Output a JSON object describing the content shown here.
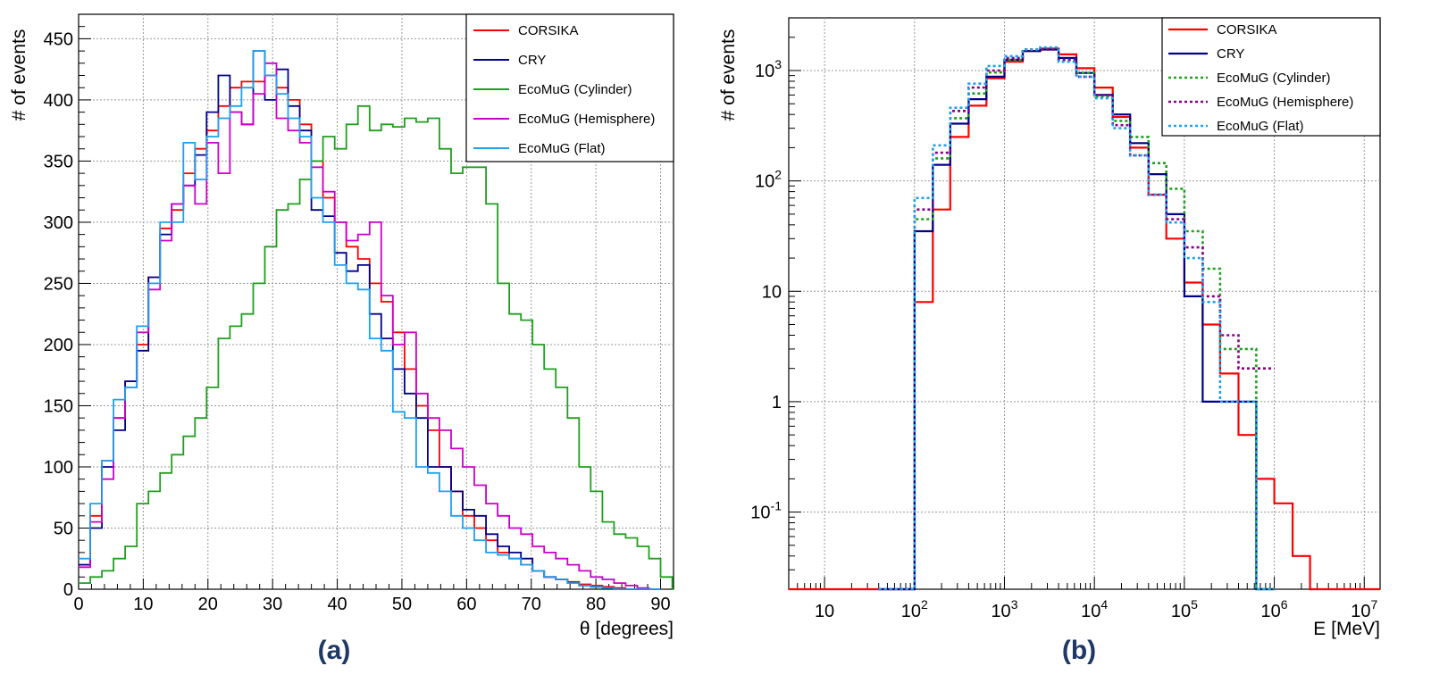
{
  "figure": {
    "panel_labels": [
      "(a)",
      "(b)"
    ]
  },
  "chart_data": [
    {
      "type": "histogram-step",
      "panel": "(a)",
      "xlabel": "θ [degrees]",
      "ylabel": "# of events",
      "xlim": [
        0,
        92
      ],
      "ylim": [
        0,
        470
      ],
      "grid": true,
      "legend_position": "top-right",
      "xticks": [
        0,
        10,
        20,
        30,
        40,
        50,
        60,
        70,
        80,
        90
      ],
      "yticks": [
        0,
        50,
        100,
        150,
        200,
        250,
        300,
        350,
        400,
        450
      ],
      "bin_edges_start": 0,
      "bin_width": 1.8,
      "series": [
        {
          "name": "CORSIKA",
          "color": "#ff0000",
          "dash": false,
          "values": [
            20,
            60,
            105,
            140,
            170,
            200,
            255,
            295,
            310,
            340,
            360,
            375,
            395,
            410,
            415,
            415,
            420,
            410,
            400,
            380,
            350,
            320,
            300,
            280,
            270,
            250,
            235,
            210,
            180,
            150,
            130,
            100,
            80,
            60,
            50,
            40,
            30,
            25,
            20,
            15,
            10,
            8,
            6,
            4,
            3,
            2,
            1,
            0,
            0,
            0
          ]
        },
        {
          "name": "CRY",
          "color": "#00008b",
          "dash": false,
          "values": [
            20,
            50,
            100,
            130,
            170,
            195,
            255,
            290,
            315,
            330,
            355,
            390,
            420,
            390,
            380,
            440,
            400,
            425,
            395,
            375,
            310,
            305,
            275,
            260,
            265,
            225,
            205,
            180,
            160,
            140,
            100,
            100,
            80,
            65,
            60,
            45,
            35,
            30,
            25,
            15,
            10,
            8,
            5,
            3,
            2,
            1,
            0,
            0,
            0,
            0
          ]
        },
        {
          "name": "EcoMuG (Cylinder)",
          "color": "#1f9f1f",
          "dash": false,
          "values": [
            5,
            10,
            15,
            25,
            35,
            70,
            80,
            95,
            110,
            125,
            140,
            165,
            205,
            215,
            225,
            250,
            280,
            310,
            315,
            335,
            350,
            370,
            360,
            380,
            395,
            375,
            380,
            378,
            385,
            382,
            385,
            360,
            340,
            345,
            345,
            315,
            250,
            225,
            220,
            200,
            180,
            165,
            140,
            100,
            80,
            55,
            45,
            42,
            35,
            25,
            10,
            0
          ]
        },
        {
          "name": "EcoMuG (Hemisphere)",
          "color": "#cc00cc",
          "dash": false,
          "values": [
            18,
            55,
            90,
            140,
            165,
            210,
            245,
            285,
            315,
            330,
            315,
            365,
            340,
            390,
            380,
            405,
            430,
            385,
            375,
            365,
            345,
            325,
            300,
            285,
            290,
            300,
            240,
            200,
            210,
            160,
            140,
            130,
            115,
            100,
            85,
            70,
            60,
            50,
            45,
            35,
            30,
            25,
            20,
            15,
            10,
            8,
            5,
            3,
            1,
            0
          ]
        },
        {
          "name": "EcoMuG (Flat)",
          "color": "#1ea0ee",
          "dash": false,
          "values": [
            25,
            70,
            105,
            155,
            165,
            215,
            250,
            300,
            300,
            365,
            335,
            370,
            385,
            395,
            410,
            440,
            420,
            405,
            385,
            370,
            320,
            300,
            265,
            250,
            245,
            205,
            195,
            145,
            140,
            100,
            95,
            80,
            60,
            50,
            40,
            30,
            28,
            25,
            20,
            15,
            10,
            8,
            5,
            3,
            2,
            1,
            0,
            0,
            0,
            0
          ]
        }
      ],
      "legend": [
        "CORSIKA",
        "CRY",
        "EcoMuG (Cylinder)",
        "EcoMuG (Hemisphere)",
        "EcoMuG (Flat)"
      ]
    },
    {
      "type": "histogram-step-log",
      "panel": "(b)",
      "xlabel": "E [MeV]",
      "ylabel": "# of events",
      "xscale": "log",
      "yscale": "log",
      "xlim": [
        4,
        15000000
      ],
      "ylim": [
        0.02,
        3000
      ],
      "grid": true,
      "legend_position": "top-right",
      "xticks": [
        {
          "value": 10,
          "label": "10"
        },
        {
          "value": 100,
          "label": "10^2"
        },
        {
          "value": 1000,
          "label": "10^3"
        },
        {
          "value": 10000,
          "label": "10^4"
        },
        {
          "value": 100000,
          "label": "10^5"
        },
        {
          "value": 1000000,
          "label": "10^6"
        },
        {
          "value": 10000000,
          "label": "10^7"
        }
      ],
      "yticks": [
        {
          "value": 0.1,
          "label": "10^-1"
        },
        {
          "value": 1,
          "label": "1"
        },
        {
          "value": 10,
          "label": "10"
        },
        {
          "value": 100,
          "label": "10^2"
        },
        {
          "value": 1000,
          "label": "10^3"
        }
      ],
      "floor_value": 0.02,
      "series": [
        {
          "name": "CORSIKA",
          "color": "#ff0000",
          "dash": false,
          "edges": [
            4,
            40,
            100,
            160,
            250,
            400,
            630,
            1000,
            1600,
            2500,
            4000,
            6300,
            10000,
            16000,
            25000,
            40000,
            63000,
            100000,
            160000,
            250000,
            400000,
            630000,
            1000000,
            1600000,
            2500000,
            15000000
          ],
          "values": [
            0.02,
            0.02,
            8,
            55,
            250,
            480,
            850,
            1200,
            1500,
            1580,
            1400,
            1050,
            700,
            380,
            200,
            75,
            30,
            12,
            5,
            1.8,
            0.5,
            0.2,
            0.12,
            0.04,
            0.02
          ]
        },
        {
          "name": "CRY",
          "color": "#00008b",
          "dash": false,
          "edges": [
            40,
            100,
            160,
            250,
            400,
            630,
            1000,
            1600,
            2500,
            4000,
            6300,
            10000,
            16000,
            25000,
            40000,
            63000,
            100000,
            160000,
            250000,
            400000,
            630000,
            1000000
          ],
          "values": [
            0.02,
            35,
            140,
            330,
            550,
            880,
            1250,
            1500,
            1550,
            1300,
            950,
            600,
            400,
            220,
            115,
            50,
            9,
            1,
            1,
            1,
            0.02
          ]
        },
        {
          "name": "EcoMuG (Cylinder)",
          "color": "#1f9f1f",
          "dash": true,
          "edges": [
            40,
            100,
            160,
            250,
            400,
            630,
            1000,
            1600,
            2500,
            4000,
            6300,
            10000,
            16000,
            25000,
            40000,
            63000,
            100000,
            160000,
            250000,
            400000,
            630000,
            1000000
          ],
          "values": [
            0.02,
            45,
            160,
            370,
            620,
            960,
            1250,
            1550,
            1550,
            1250,
            950,
            580,
            350,
            250,
            145,
            85,
            35,
            16,
            3,
            3,
            0.02
          ]
        },
        {
          "name": "EcoMuG (Hemisphere)",
          "color": "#8b008b",
          "dash": true,
          "edges": [
            40,
            100,
            160,
            250,
            400,
            630,
            1000,
            1600,
            2500,
            4000,
            6300,
            10000,
            16000,
            25000,
            40000,
            63000,
            100000,
            160000,
            250000,
            400000,
            630000,
            1000000
          ],
          "values": [
            0.02,
            55,
            180,
            430,
            700,
            1000,
            1300,
            1550,
            1550,
            1250,
            880,
            600,
            320,
            170,
            75,
            45,
            25,
            9,
            4,
            2,
            2
          ]
        },
        {
          "name": "EcoMuG (Flat)",
          "color": "#1ea0ee",
          "dash": true,
          "edges": [
            40,
            100,
            160,
            250,
            400,
            630,
            1000,
            1600,
            2500,
            4000,
            6300,
            10000,
            16000,
            25000,
            40000,
            63000,
            100000,
            160000,
            250000,
            400000,
            630000,
            1000000
          ],
          "values": [
            0.02,
            70,
            210,
            460,
            760,
            1100,
            1350,
            1550,
            1620,
            1200,
            880,
            560,
            300,
            170,
            75,
            42,
            20,
            8,
            1,
            1,
            0.02
          ]
        }
      ],
      "legend": [
        "CORSIKA",
        "CRY",
        "EcoMuG (Cylinder)",
        "EcoMuG (Hemisphere)",
        "EcoMuG (Flat)"
      ]
    }
  ]
}
